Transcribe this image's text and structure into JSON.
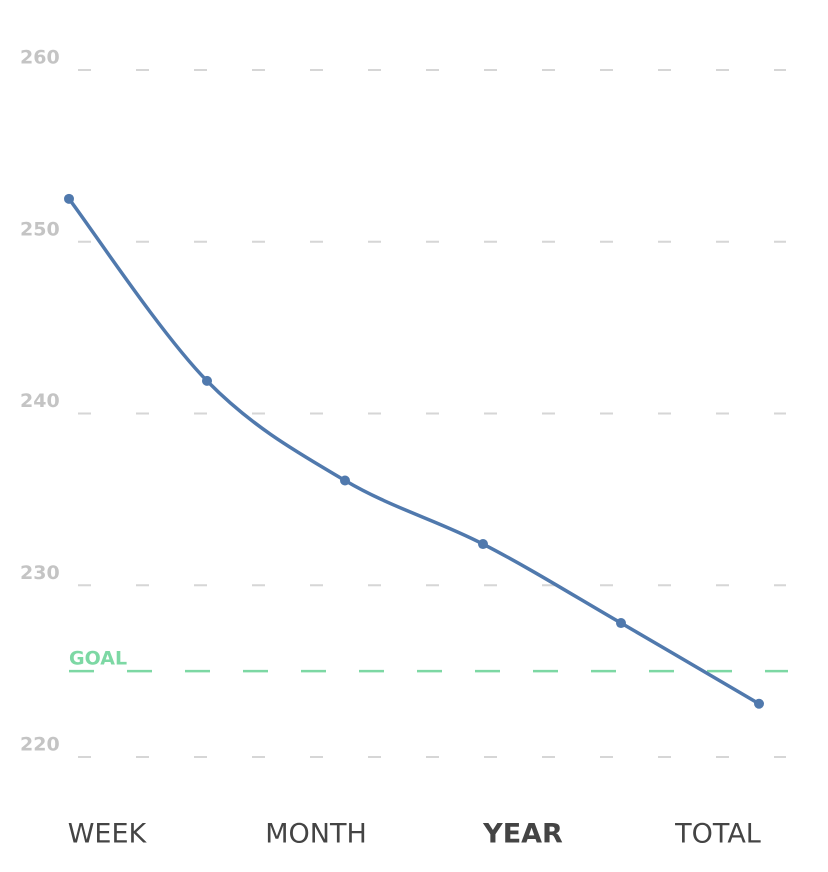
{
  "chart_data": {
    "type": "line",
    "categories": [
      null,
      null,
      null,
      null,
      null,
      null
    ],
    "series": [
      {
        "color": "#5079ad",
        "values": [
          252.5,
          241.9,
          236.1,
          232.4,
          227.8,
          223.1
        ]
      }
    ],
    "ylim": [
      220,
      260
    ],
    "yticks": [
      220,
      230,
      240,
      250,
      260
    ],
    "grid": true,
    "goal": {
      "label": "GOAL",
      "value": 225,
      "color": "#7dd8a4"
    }
  },
  "tabs": {
    "items": [
      "WEEK",
      "MONTH",
      "YEAR",
      "TOTAL"
    ],
    "active": 2
  }
}
